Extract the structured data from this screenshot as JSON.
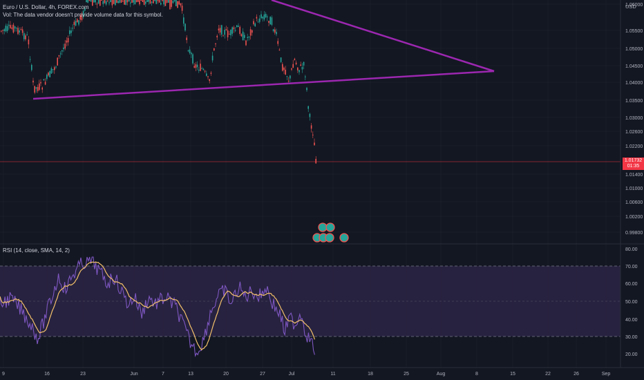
{
  "header": {
    "symbol_line": "Euro / U.S. Dollar, 4h, FOREX.com",
    "volume_line": "Vol: The data vendor doesn't provide volume data for this symbol."
  },
  "price_axis": {
    "currency": "USD",
    "ticks": [
      "1.06000",
      "1.05500",
      "1.05000",
      "1.04500",
      "1.04000",
      "1.03500",
      "1.03000",
      "1.02600",
      "1.02200",
      "1.01400",
      "1.01000",
      "1.00600",
      "1.00200",
      "0.99800"
    ]
  },
  "current_price": {
    "price": "1.01732",
    "countdown": "01:35"
  },
  "rsi": {
    "label": "RSI (14, close, SMA, 14, 2)",
    "ticks": [
      "80.00",
      "70.00",
      "60.00",
      "50.00",
      "40.00",
      "30.00",
      "20.00"
    ],
    "upper_band": 70,
    "lower_band": 30,
    "middle_band": 50
  },
  "time_axis": {
    "labels": [
      "9",
      "16",
      "23",
      "Jun",
      "7",
      "13",
      "20",
      "27",
      "Jul",
      "11",
      "18",
      "25",
      "Aug",
      "8",
      "15",
      "22",
      "26",
      "Sep"
    ]
  },
  "colors": {
    "background": "#131722",
    "up_candle": "#26a69a",
    "down_candle": "#ef5350",
    "trendline": "#9c27b0",
    "rsi_line": "#7e57c2",
    "rsi_sma": "#f5c26b",
    "rsi_band_fill": "#2a2342",
    "price_tag": "#f23645"
  },
  "icons": [
    "event-dividend-icon",
    "event-earnings-icon"
  ]
}
